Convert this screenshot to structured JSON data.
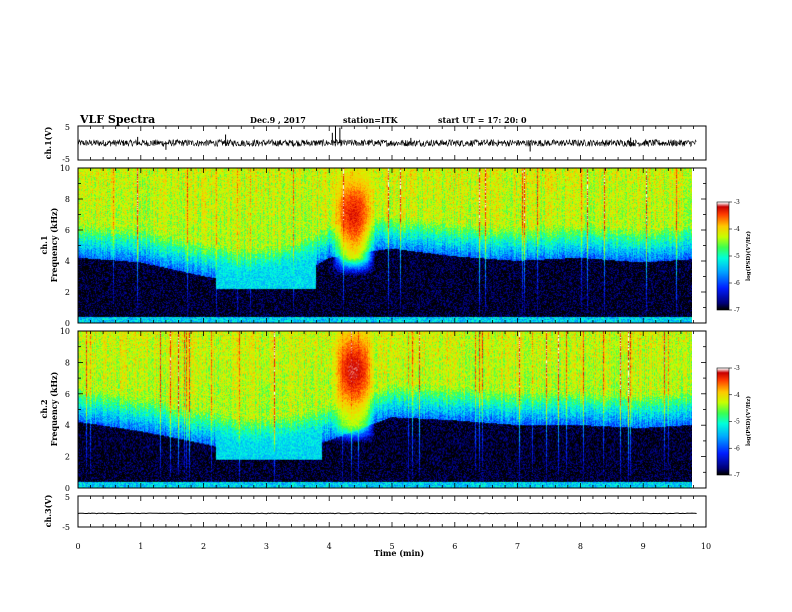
{
  "header": {
    "title": "VLF Spectra",
    "date": "Dec.9 , 2017",
    "station": "station=ITK",
    "start_ut": "start  UT =   17: 20: 0"
  },
  "chart_data": [
    {
      "type": "line",
      "ylabel": "ch.1(V)",
      "ylim": [
        -5,
        5
      ],
      "y_ticks": [
        "5",
        "-5"
      ],
      "xlim": [
        0,
        10
      ],
      "baseline": 0,
      "noise_amplitude": 1,
      "spikes": [
        {
          "x": 4.1,
          "y": 5
        },
        {
          "x": 4.17,
          "y": 4.5
        },
        {
          "x": 4.05,
          "y": 3
        },
        {
          "x": 2.35,
          "y": 2.5
        },
        {
          "x": 0.95,
          "y": 1.8
        },
        {
          "x": 7.2,
          "y": -2.5
        },
        {
          "x": 1.4,
          "y": -2.0
        },
        {
          "x": 5.3,
          "y": 1.5
        },
        {
          "x": 8.8,
          "y": 1.6
        }
      ]
    },
    {
      "type": "heatmap",
      "ylabel": "Frequency (kHz)",
      "channel_label": "ch.1",
      "ylim": [
        0,
        10
      ],
      "y_ticks": [
        "0",
        "2",
        "4",
        "6",
        "8",
        "10"
      ],
      "xlim": [
        0,
        9.8
      ],
      "colorbar": {
        "label": "log(PSD)(V²/Hz)",
        "range": [
          -7,
          -3
        ],
        "ticks": [
          "-3",
          "-4",
          "-5",
          "-6",
          "-7"
        ]
      },
      "background_cutoff_khz_profile": [
        [
          0,
          4.2
        ],
        [
          1,
          3.9
        ],
        [
          2,
          3.0
        ],
        [
          2.6,
          2.6
        ],
        [
          3.0,
          2.7
        ],
        [
          3.6,
          3.2
        ],
        [
          4.0,
          4.2
        ],
        [
          5.0,
          4.8
        ],
        [
          6.0,
          4.3
        ],
        [
          7.0,
          4.0
        ],
        [
          8.0,
          4.2
        ],
        [
          9.0,
          3.9
        ],
        [
          9.8,
          4.1
        ]
      ],
      "hiss_band": {
        "t_range": [
          2.2,
          3.8
        ],
        "f_range": [
          2.2,
          5.5
        ],
        "level": -5.3
      },
      "storm_burst": {
        "t_center": 4.4,
        "t_halfwidth": 0.35,
        "f_range": [
          3.0,
          10.0
        ],
        "peak_khz": 7.0,
        "peak_level": -3.3
      }
    },
    {
      "type": "heatmap",
      "ylabel": "Frequency (kHz)",
      "channel_label": "ch.2",
      "ylim": [
        0,
        10
      ],
      "y_ticks": [
        "0",
        "2",
        "4",
        "6",
        "8",
        "10"
      ],
      "xlim": [
        0,
        9.8
      ],
      "colorbar": {
        "label": "log(PSD)(V²/Hz)",
        "range": [
          -7,
          -3
        ],
        "ticks": [
          "-3",
          "-4",
          "-5",
          "-6",
          "-7"
        ]
      },
      "background_cutoff_khz_profile": [
        [
          0,
          4.2
        ],
        [
          1,
          3.6
        ],
        [
          2,
          2.8
        ],
        [
          2.6,
          2.3
        ],
        [
          3.0,
          2.2
        ],
        [
          3.6,
          2.6
        ],
        [
          4.0,
          3.0
        ],
        [
          5.0,
          4.5
        ],
        [
          6.0,
          4.3
        ],
        [
          7.0,
          4.0
        ],
        [
          8.0,
          4.0
        ],
        [
          9.0,
          3.8
        ],
        [
          9.8,
          4.0
        ]
      ],
      "hiss_band": {
        "t_range": [
          2.2,
          3.9
        ],
        "f_range": [
          1.8,
          5.5
        ],
        "level": -5.3
      },
      "storm_burst": {
        "t_center": 4.4,
        "t_halfwidth": 0.35,
        "f_range": [
          2.8,
          10.0
        ],
        "peak_khz": 7.5,
        "peak_level": -3.2
      }
    },
    {
      "type": "line",
      "ylabel": "ch.3(V)",
      "ylim": [
        -5,
        5
      ],
      "y_ticks": [
        "5",
        "-5"
      ],
      "xlim": [
        0,
        10
      ],
      "baseline": -0.6,
      "noise_amplitude": 0.1
    }
  ],
  "x_axis": {
    "label": "Time  (min)",
    "ticks": [
      "0",
      "1",
      "2",
      "3",
      "4",
      "5",
      "6",
      "7",
      "8",
      "9",
      "10"
    ],
    "range": [
      0,
      10
    ]
  },
  "colors": {
    "background": "#ffffff",
    "ink": "#000000"
  }
}
